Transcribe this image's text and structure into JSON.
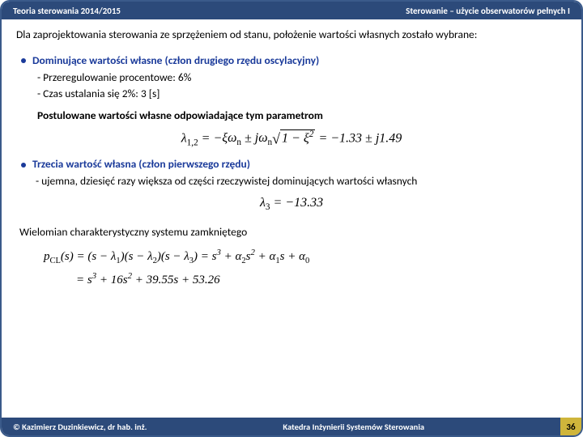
{
  "header": {
    "left": "Teoria sterowania 2014/2015",
    "right": "Sterowanie – użycie obserwatorów pełnych I"
  },
  "footer": {
    "left": "© Kazimierz Duzinkiewicz, dr hab. inż.",
    "right": "Katedra Inżynierii Systemów Sterowania",
    "page": "36"
  },
  "body": {
    "intro": "Dla zaprojektowania sterowania ze sprzężeniem od stanu, położenie wartości własnych zostało wybrane:",
    "b1": "Dominujące wartości własne (człon drugiego rzędu oscylacyjny)",
    "s1a": "- Przeregulowanie procentowe: 6%",
    "s1b": "- Czas ustalania się 2%: 3 [s]",
    "p1": "Postulowane wartości własne odpowiadające tym parametrom",
    "b2": "Trzecia wartość własna (człon pierwszego rzędu)",
    "s2a": "- ujemna, dziesięć razy większa od części rzeczywistej dominujących wartości własnych",
    "closing": "Wielomian charakterystyczny systemu zamkniętego",
    "eq2v": "= −13.33"
  }
}
